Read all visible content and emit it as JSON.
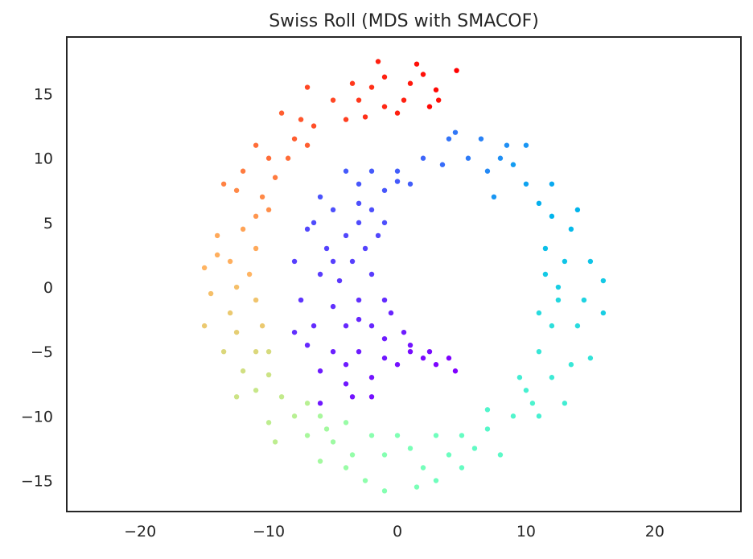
{
  "chart_data": {
    "type": "scatter",
    "title": "Swiss Roll (MDS with SMACOF)",
    "xlabel": "",
    "ylabel": "",
    "xlim": [
      -25.7,
      26.7
    ],
    "ylim": [
      -17.4,
      19.4
    ],
    "xticks": [
      -20,
      -10,
      0,
      10,
      20
    ],
    "xtick_labels": [
      "−20",
      "−10",
      "0",
      "10",
      "20"
    ],
    "yticks": [
      15,
      10,
      5,
      0,
      -5,
      -10,
      -15
    ],
    "ytick_labels": [
      "15",
      "10",
      "5",
      "0",
      "−5",
      "−10",
      "−15"
    ],
    "grid": false,
    "colormap": "rainbow",
    "point_format": "[x, y, color_value 0-1]",
    "points": [
      [
        4.6,
        16.8,
        1
      ],
      [
        3,
        15.3,
        0.99
      ],
      [
        2,
        16.5,
        0.98
      ],
      [
        1,
        15.8,
        0.97
      ],
      [
        0.5,
        14.5,
        0.96
      ],
      [
        -1.5,
        17.5,
        0.96
      ],
      [
        -1,
        14,
        0.95
      ],
      [
        -2,
        15.5,
        0.94
      ],
      [
        -3.5,
        15.8,
        0.93
      ],
      [
        -4,
        13,
        0.92
      ],
      [
        -5,
        14.5,
        0.91
      ],
      [
        -6.5,
        12.5,
        0.9
      ],
      [
        -7,
        15.5,
        0.91
      ],
      [
        1.5,
        17.3,
        0.98
      ],
      [
        3.2,
        14.5,
        0.98
      ],
      [
        -2.5,
        13.2,
        0.94
      ],
      [
        0,
        13.5,
        0.96
      ],
      [
        2.5,
        14,
        0.99
      ],
      [
        -3,
        14.5,
        0.93
      ],
      [
        -1,
        16.3,
        0.96
      ],
      [
        -8,
        11.5,
        0.88
      ],
      [
        -7.5,
        13,
        0.89
      ],
      [
        -9,
        13.5,
        0.88
      ],
      [
        -10,
        10,
        0.86
      ],
      [
        -11,
        11,
        0.86
      ],
      [
        -9.5,
        8.5,
        0.84
      ],
      [
        -12,
        9,
        0.84
      ],
      [
        -10.5,
        7,
        0.82
      ],
      [
        -12.5,
        7.5,
        0.82
      ],
      [
        -11,
        5.5,
        0.8
      ],
      [
        -13.5,
        8,
        0.83
      ],
      [
        -8.5,
        10,
        0.86
      ],
      [
        -7,
        11,
        0.88
      ],
      [
        -10,
        6,
        0.81
      ],
      [
        -12,
        4.5,
        0.78
      ],
      [
        -14,
        4,
        0.77
      ],
      [
        -13,
        2,
        0.76
      ],
      [
        -15,
        1.5,
        0.75
      ],
      [
        -11.5,
        1,
        0.75
      ],
      [
        -12.5,
        0,
        0.73
      ],
      [
        -14.5,
        -0.5,
        0.73
      ],
      [
        -13,
        -2,
        0.71
      ],
      [
        -11,
        -1,
        0.72
      ],
      [
        -15,
        -3,
        0.71
      ],
      [
        -12.5,
        -3.5,
        0.7
      ],
      [
        -10.5,
        -3,
        0.71
      ],
      [
        -11,
        3,
        0.77
      ],
      [
        -14,
        2.5,
        0.76
      ],
      [
        -11,
        -5,
        0.68
      ],
      [
        -13.5,
        -5,
        0.68
      ],
      [
        -12,
        -6.5,
        0.66
      ],
      [
        -10,
        -6.8,
        0.65
      ],
      [
        -11,
        -8,
        0.64
      ],
      [
        -9,
        -8.5,
        0.63
      ],
      [
        -12.5,
        -8.5,
        0.65
      ],
      [
        -8,
        -10,
        0.61
      ],
      [
        -10,
        -10.5,
        0.62
      ],
      [
        -7,
        -9,
        0.61
      ],
      [
        -9.5,
        -12,
        0.62
      ],
      [
        -10,
        -5,
        0.67
      ],
      [
        -6,
        -10,
        0.58
      ],
      [
        -7,
        -11.5,
        0.58
      ],
      [
        -5,
        -12,
        0.56
      ],
      [
        -4,
        -10.5,
        0.55
      ],
      [
        -3.5,
        -13,
        0.54
      ],
      [
        -2,
        -11.5,
        0.52
      ],
      [
        -1,
        -13,
        0.51
      ],
      [
        -2.5,
        -15,
        0.53
      ],
      [
        0,
        -11.5,
        0.5
      ],
      [
        -6,
        -13.5,
        0.57
      ],
      [
        -4,
        -14,
        0.55
      ],
      [
        -5.5,
        -11,
        0.57
      ],
      [
        1,
        -12.5,
        0.49
      ],
      [
        2,
        -14,
        0.48
      ],
      [
        3,
        -11.5,
        0.47
      ],
      [
        4,
        -13,
        0.46
      ],
      [
        5,
        -11.5,
        0.45
      ],
      [
        3,
        -15,
        0.47
      ],
      [
        6,
        -12.5,
        0.44
      ],
      [
        7,
        -11,
        0.42
      ],
      [
        8,
        -13,
        0.43
      ],
      [
        9,
        -10,
        0.41
      ],
      [
        7,
        -9.5,
        0.41
      ],
      [
        1.5,
        -15.5,
        0.49
      ],
      [
        -1,
        -15.8,
        0.51
      ],
      [
        5,
        -14,
        0.45
      ],
      [
        10,
        -8,
        0.39
      ],
      [
        11,
        -10,
        0.39
      ],
      [
        9.5,
        -7,
        0.38
      ],
      [
        12,
        -7,
        0.37
      ],
      [
        11,
        -5,
        0.36
      ],
      [
        13.5,
        -6,
        0.36
      ],
      [
        12,
        -3,
        0.34
      ],
      [
        14,
        -3,
        0.33
      ],
      [
        11,
        -2,
        0.33
      ],
      [
        12.5,
        -1,
        0.32
      ],
      [
        14.5,
        -1,
        0.31
      ],
      [
        13,
        -9,
        0.38
      ],
      [
        15,
        -5.5,
        0.35
      ],
      [
        10.5,
        -9,
        0.4
      ],
      [
        11.5,
        1,
        0.29
      ],
      [
        13,
        2,
        0.28
      ],
      [
        15,
        2,
        0.28
      ],
      [
        11.5,
        3,
        0.27
      ],
      [
        13.5,
        4.5,
        0.26
      ],
      [
        12,
        5.5,
        0.25
      ],
      [
        14,
        6,
        0.25
      ],
      [
        11,
        6.5,
        0.24
      ],
      [
        10,
        8,
        0.22
      ],
      [
        12,
        8,
        0.23
      ],
      [
        9,
        9.5,
        0.21
      ],
      [
        16,
        0.5,
        0.29
      ],
      [
        16,
        -2,
        0.3
      ],
      [
        12.5,
        0,
        0.3
      ],
      [
        8,
        10,
        0.19
      ],
      [
        6.5,
        11.5,
        0.17
      ],
      [
        7,
        9,
        0.18
      ],
      [
        5.5,
        10,
        0.16
      ],
      [
        4,
        11.5,
        0.15
      ],
      [
        8.5,
        11,
        0.19
      ],
      [
        3.5,
        9.5,
        0.14
      ],
      [
        10,
        11,
        0.2
      ],
      [
        4.5,
        12,
        0.155
      ],
      [
        7.5,
        7,
        0.2
      ],
      [
        2,
        10,
        0.13
      ],
      [
        1,
        8,
        0.12
      ],
      [
        0,
        9,
        0.12
      ],
      [
        -1,
        7.5,
        0.11
      ],
      [
        -2,
        9,
        0.115
      ],
      [
        -3,
        8,
        0.11
      ],
      [
        -4,
        9,
        0.115
      ],
      [
        -2,
        6,
        0.1
      ],
      [
        -3,
        5,
        0.095
      ],
      [
        -5,
        6,
        0.1
      ],
      [
        -4,
        4,
        0.09
      ],
      [
        -6,
        7,
        0.105
      ],
      [
        -1.5,
        4,
        0.09
      ],
      [
        -5.5,
        3,
        0.085
      ],
      [
        -7,
        4.5,
        0.09
      ],
      [
        -3.5,
        2,
        0.08
      ],
      [
        -6,
        1,
        0.075
      ],
      [
        -4.5,
        0.5,
        0.07
      ],
      [
        -2,
        1,
        0.075
      ],
      [
        -8,
        2,
        0.08
      ],
      [
        -7.5,
        -1,
        0.065
      ],
      [
        -5,
        -1.5,
        0.06
      ],
      [
        -3,
        -1,
        0.06
      ],
      [
        -6.5,
        -3,
        0.055
      ],
      [
        -4,
        -3,
        0.05
      ],
      [
        -2,
        -3,
        0.048
      ],
      [
        -7,
        -4.5,
        0.05
      ],
      [
        -5,
        -5,
        0.04
      ],
      [
        -3,
        -5,
        0.035
      ],
      [
        -1,
        -4,
        0.035
      ],
      [
        -6,
        -6.5,
        0.035
      ],
      [
        -4,
        -7.5,
        0.03
      ],
      [
        -2,
        -7,
        0.025
      ],
      [
        0,
        -6,
        0.02
      ],
      [
        -3.5,
        -8.5,
        0.025
      ],
      [
        -2,
        -8.5,
        0.02
      ],
      [
        1,
        -5,
        0.015
      ],
      [
        2,
        -5.5,
        0.01
      ],
      [
        3,
        -6,
        0.005
      ],
      [
        4.5,
        -6.5,
        0
      ],
      [
        4,
        -5.5,
        0.003
      ],
      [
        -0.5,
        -2,
        0.045
      ],
      [
        0.5,
        -3.5,
        0.035
      ],
      [
        -6,
        -9,
        0.03
      ],
      [
        -8,
        -3.5,
        0.06
      ],
      [
        -1,
        5,
        0.1
      ],
      [
        -3,
        6.5,
        0.1
      ],
      [
        -2.5,
        3,
        0.085
      ],
      [
        -5,
        2,
        0.08
      ],
      [
        -1,
        -1,
        0.055
      ],
      [
        -3,
        -2.5,
        0.05
      ],
      [
        1,
        -4.5,
        0.025
      ],
      [
        -1,
        -5.5,
        0.03
      ],
      [
        -4,
        -6,
        0.035
      ],
      [
        2.5,
        -5,
        0.012
      ],
      [
        0,
        8.2,
        0.115
      ],
      [
        -6.5,
        5,
        0.095
      ]
    ]
  }
}
